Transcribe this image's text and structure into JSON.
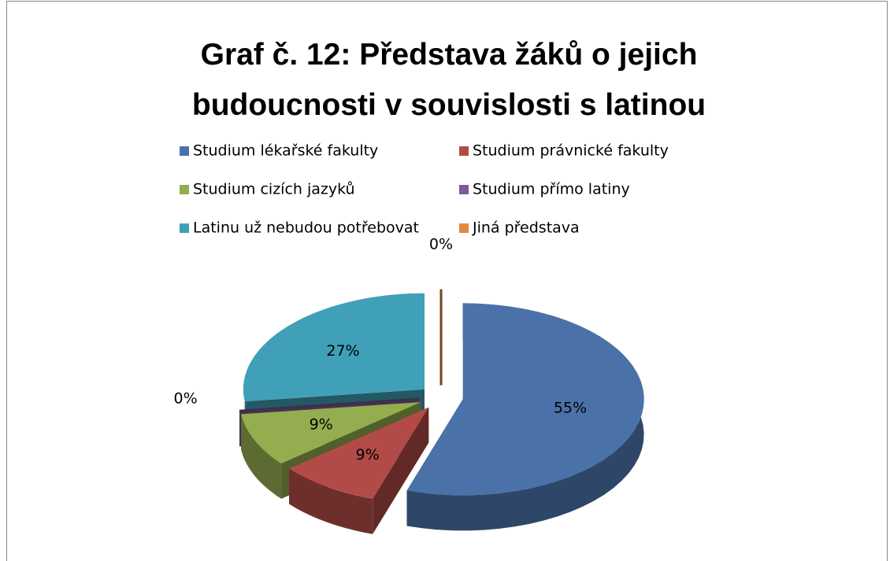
{
  "chart_data": {
    "type": "pie3d",
    "title": "Graf č. 12: Představa žáků o jejich budoucnosti v souvislosti s latinou",
    "categories": [
      "Studium lékařské fakulty",
      "Studium právnické fakulty",
      "Studium cizích jazyků",
      "Studium přímo latiny",
      "Latinu už nebudou potřebovat",
      "Jiná představa"
    ],
    "values": [
      55,
      9,
      9,
      0,
      27,
      0
    ],
    "value_labels": [
      "55%",
      "9%",
      "9%",
      "0%",
      "27%",
      "0%"
    ],
    "colors": [
      "#4a72a8",
      "#b24b47",
      "#93ad4f",
      "#7b5b98",
      "#40a0b8",
      "#e48a3a"
    ],
    "legend": "top"
  }
}
